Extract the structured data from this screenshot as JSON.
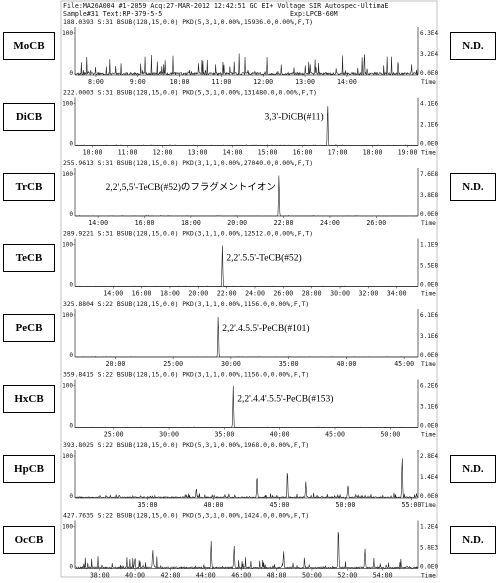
{
  "header": {
    "line1": "File:MA26A004 #1-2059 Acq:27-MAR-2012 12:42:51 GC EI+ Voltage SIR Autospec-UltimaE",
    "line2": "Sample#31 Text:RP-379-5-5",
    "line2_right": "Exp:LPCB-60M"
  },
  "colors": {
    "trace": "#222222",
    "axis": "#444444",
    "text": "#111111"
  },
  "chart_data": [
    {
      "type": "line",
      "label": "MoCB",
      "nd": "N.D.",
      "info": "188.0393 S:31 BSUB(128,15,0.0) PKD(5,3,1,0.00%,15936.0,0.00%,F,T)",
      "xlim": [
        7.5,
        15.7
      ],
      "ylim": [
        0,
        100
      ],
      "ticks": [
        8,
        9,
        10,
        11,
        12,
        13,
        14
      ],
      "tick_labels": [
        "8:00",
        "9:00",
        "10:00",
        "11:00",
        "12:00",
        "13:00",
        "14:00"
      ],
      "ytick_labels": [
        "0",
        "100"
      ],
      "right_top": "6.3E4",
      "right_mid": "3.2E4",
      "right_bottom": "0.0E0",
      "noise": 48,
      "base": 6,
      "seed": 3,
      "peaks": [],
      "annotation": ""
    },
    {
      "type": "line",
      "label": "DiCB",
      "nd": "",
      "info": "222.0003 S:31 BSUB(128,15,0.0) PKD(5,3,1,0.00%,131480.0,0.00%,F,T)",
      "xlim": [
        9.5,
        19.3
      ],
      "ylim": [
        0,
        100
      ],
      "ticks": [
        10,
        11,
        12,
        13,
        14,
        15,
        16,
        17,
        18,
        19
      ],
      "tick_labels": [
        "10:00",
        "11:00",
        "12:00",
        "13:00",
        "14:00",
        "15:00",
        "16:00",
        "17:00",
        "18:00",
        "19:00"
      ],
      "ytick_labels": [
        "0",
        "100"
      ],
      "right_top": "4.1E6",
      "right_mid": "2.1E6",
      "right_bottom": "0.0E0",
      "noise": 1.5,
      "base": 0.5,
      "seed": 7,
      "peaks": [
        [
          16.72,
          100
        ]
      ],
      "annotation": "3,3'-DiCB(#11)"
    },
    {
      "type": "line",
      "label": "TrCB",
      "nd": "N.D.",
      "info": "255.9613 S:31 BSUB(128,15,0.0) PKD(3,1,1,0.00%,27040.0,0.00%,F,T)",
      "xlim": [
        13,
        27.8
      ],
      "ylim": [
        0,
        100
      ],
      "ticks": [
        14,
        16,
        18,
        20,
        22,
        24,
        26
      ],
      "tick_labels": [
        "14:00",
        "16:00",
        "18:00",
        "20:00",
        "22:00",
        "24:00",
        "26:00"
      ],
      "ytick_labels": [
        "0",
        "100"
      ],
      "right_top": "7.6E8",
      "right_mid": "3.8E8",
      "right_bottom": "0.0E0",
      "noise": 1.2,
      "base": 0.4,
      "seed": 11,
      "peaks": [
        [
          21.8,
          100
        ]
      ],
      "annotation": "2,2',5,5'-TeCB(#52)のフラグメントイオン"
    },
    {
      "type": "line",
      "label": "TeCB",
      "nd": "",
      "info": "289.9221 S:31 BSUB(128,15,0.0) PKD(3,1,1,0.00%,12512.0,0.00%,F,T)",
      "xlim": [
        11.3,
        35.5
      ],
      "ylim": [
        0,
        100
      ],
      "ticks": [
        14,
        16,
        18,
        20,
        22,
        24,
        26,
        28,
        30,
        32,
        34
      ],
      "tick_labels": [
        "14:00",
        "16:00",
        "18:00",
        "20:00",
        "22:00",
        "24:00",
        "26:00",
        "28:00",
        "30:00",
        "32:00",
        "34:00"
      ],
      "ytick_labels": [
        "0",
        "100"
      ],
      "right_top": "1.1E9",
      "right_mid": "5.5E8",
      "right_bottom": "0.0E0",
      "noise": 1.0,
      "base": 0.3,
      "seed": 13,
      "peaks": [
        [
          21.7,
          100
        ]
      ],
      "annotation": "2,2'.5.5'-TeCB(#52)"
    },
    {
      "type": "line",
      "label": "PeCB",
      "nd": "",
      "info": "325.8804 S:22 BSUB(128,15,0.0) PKD(3,1,1,0.00%,1156.0,0.00%,F,T)",
      "xlim": [
        16.5,
        46.2
      ],
      "ylim": [
        0,
        100
      ],
      "ticks": [
        20,
        25,
        30,
        35,
        40,
        45
      ],
      "tick_labels": [
        "20:00",
        "25:00",
        "30:00",
        "35:00",
        "40:00",
        "45:00"
      ],
      "ytick_labels": [
        "0",
        "100"
      ],
      "right_top": "6.1E6",
      "right_mid": "3.1E6",
      "right_bottom": "0.0E0",
      "noise": 1.0,
      "base": 0.3,
      "seed": 17,
      "peaks": [
        [
          28.9,
          100
        ]
      ],
      "annotation": "2,2'.4.5.5'-PeCB(#101)"
    },
    {
      "type": "line",
      "label": "HxCB",
      "nd": "",
      "info": "359.8415 S:22 BSUB(128,15,0.0) PKD(3,1,1,0.00%,1156.0,0.00%,F,T)",
      "xlim": [
        21.5,
        52.5
      ],
      "ylim": [
        0,
        100
      ],
      "ticks": [
        25,
        30,
        35,
        40,
        45,
        50
      ],
      "tick_labels": [
        "25:00",
        "30:00",
        "35:00",
        "40:00",
        "45:00",
        "50:00"
      ],
      "ytick_labels": [
        "0",
        "100"
      ],
      "right_top": "6.2E6",
      "right_mid": "3.1E6",
      "right_bottom": "0.0E0",
      "noise": 1.0,
      "base": 0.3,
      "seed": 19,
      "peaks": [
        [
          35.8,
          100
        ]
      ],
      "annotation": "2,2'.4.4'.5.5'-PeCB(#153)"
    },
    {
      "type": "line",
      "label": "HpCB",
      "nd": "N.D.",
      "info": "393.8025 S:22 BSUB(128,15,0.0) PKD(5,3,1,0.00%,1968.0,0.00%,F,T)",
      "xlim": [
        29.5,
        55.5
      ],
      "ylim": [
        0,
        100
      ],
      "ticks": [
        35,
        40,
        45,
        50,
        55
      ],
      "tick_labels": [
        "35:00",
        "40:00",
        "45:00",
        "50:00",
        "55:00"
      ],
      "ytick_labels": [
        "0",
        "100"
      ],
      "right_top": "2.8E4",
      "right_mid": "1.4E4",
      "right_bottom": "0.0E0",
      "noise": 10,
      "base": 3,
      "seed": 23,
      "peaks": [
        [
          43.3,
          55
        ],
        [
          45.6,
          60
        ],
        [
          47.0,
          38
        ],
        [
          54.3,
          100
        ],
        [
          50.2,
          30
        ],
        [
          38.7,
          22
        ]
      ],
      "annotation": ""
    },
    {
      "type": "line",
      "label": "OcCB",
      "nd": "N.D.",
      "info": "427.7635 S:22 BSUB(128,15,0.0) PKD(5,3,1,0.00%,1424.0,0.00%,F,T)",
      "xlim": [
        36.6,
        56
      ],
      "ylim": [
        0,
        100
      ],
      "ticks": [
        38,
        40,
        42,
        44,
        46,
        48,
        50,
        52,
        54
      ],
      "tick_labels": [
        "38:00",
        "40:00",
        "42:00",
        "44:00",
        "46:00",
        "48:00",
        "50:00",
        "52:00",
        "54:00"
      ],
      "ytick_labels": [
        "0",
        "100"
      ],
      "right_top": "1.2E4",
      "right_mid": "5.8E3",
      "right_bottom": "0.0E0",
      "noise": 28,
      "base": 4,
      "seed": 29,
      "peaks": [
        [
          44.3,
          65
        ],
        [
          45.6,
          55
        ],
        [
          51.5,
          88
        ],
        [
          53.0,
          45
        ],
        [
          48.4,
          40
        ],
        [
          41.0,
          42
        ]
      ],
      "annotation": ""
    }
  ],
  "time_label": "Time"
}
